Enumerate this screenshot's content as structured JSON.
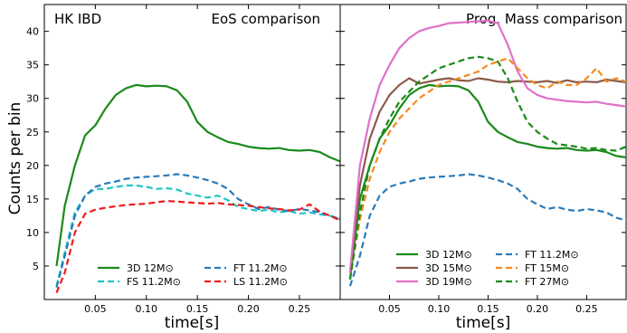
{
  "figure": {
    "ylabel": "Counts per bin",
    "xlabel": "time[s]"
  },
  "chart_data": [
    {
      "type": "line",
      "panel_label": "HK IBD",
      "title": "EoS comparison",
      "xlabel": "time[s]",
      "ylabel": "Counts per bin",
      "xlim": [
        0.0,
        0.29
      ],
      "ylim": [
        0,
        44
      ],
      "xticks": [
        "0.05",
        "0.10",
        "0.15",
        "0.20",
        "0.25"
      ],
      "yticks": [
        "5",
        "10",
        "15",
        "20",
        "25",
        "30",
        "35",
        "40"
      ],
      "legend_position": "bottom-center",
      "series": [
        {
          "name": "3D 12M⊙",
          "color": "#1a8a1a",
          "dash": "solid",
          "x": [
            0.012,
            0.02,
            0.03,
            0.04,
            0.05,
            0.06,
            0.07,
            0.08,
            0.09,
            0.1,
            0.11,
            0.12,
            0.13,
            0.14,
            0.15,
            0.16,
            0.17,
            0.18,
            0.19,
            0.2,
            0.21,
            0.22,
            0.23,
            0.24,
            0.25,
            0.26,
            0.27,
            0.28,
            0.29
          ],
          "y": [
            5,
            14,
            20,
            24.5,
            26,
            28.5,
            30.5,
            31.5,
            32,
            31.8,
            31.9,
            31.8,
            31.2,
            29.5,
            26.5,
            25,
            24.2,
            23.5,
            23.2,
            22.8,
            22.6,
            22.5,
            22.6,
            22.3,
            22.2,
            22.3,
            22,
            21.2,
            20.6
          ]
        },
        {
          "name": "FS 11.2M⊙",
          "color": "#1fc4c4",
          "dash": "dashed",
          "x": [
            0.012,
            0.02,
            0.03,
            0.04,
            0.05,
            0.06,
            0.07,
            0.08,
            0.09,
            0.1,
            0.11,
            0.12,
            0.13,
            0.14,
            0.15,
            0.16,
            0.17,
            0.18,
            0.19,
            0.2,
            0.21,
            0.22,
            0.23,
            0.24,
            0.25,
            0.26,
            0.27,
            0.28,
            0.29
          ],
          "y": [
            2,
            7,
            13,
            15.5,
            16.5,
            16.5,
            16.8,
            17,
            17,
            16.8,
            16.5,
            16.6,
            16.4,
            15.8,
            15.5,
            15.2,
            15.5,
            14.8,
            13.8,
            13.5,
            13.2,
            13.4,
            13,
            13.2,
            12.8,
            13,
            12.7,
            12.5,
            12
          ]
        },
        {
          "name": "FT 11.2M⊙",
          "color": "#2a7ab8",
          "dash": "dashed",
          "x": [
            0.012,
            0.02,
            0.03,
            0.04,
            0.05,
            0.06,
            0.07,
            0.08,
            0.09,
            0.1,
            0.11,
            0.12,
            0.13,
            0.14,
            0.15,
            0.16,
            0.17,
            0.18,
            0.19,
            0.2,
            0.21,
            0.22,
            0.23,
            0.24,
            0.25,
            0.26,
            0.27,
            0.28,
            0.29
          ],
          "y": [
            1.8,
            6.5,
            12.5,
            15.5,
            16.8,
            17.3,
            17.6,
            18,
            18.2,
            18.3,
            18.4,
            18.5,
            18.7,
            18.5,
            18.2,
            17.8,
            17.3,
            16.5,
            15,
            14.2,
            13.5,
            13.8,
            13.4,
            13.2,
            13.5,
            13.3,
            13,
            12.5,
            12
          ]
        },
        {
          "name": "LS 11.2M⊙",
          "color": "#ee1c1c",
          "dash": "dashed",
          "x": [
            0.012,
            0.02,
            0.03,
            0.04,
            0.05,
            0.06,
            0.07,
            0.08,
            0.09,
            0.1,
            0.11,
            0.12,
            0.13,
            0.14,
            0.15,
            0.16,
            0.17,
            0.18,
            0.19,
            0.2,
            0.21,
            0.22,
            0.23,
            0.24,
            0.25,
            0.26,
            0.27,
            0.28,
            0.29
          ],
          "y": [
            1,
            4,
            10,
            12.8,
            13.4,
            13.7,
            13.9,
            14.1,
            14.2,
            14.3,
            14.5,
            14.7,
            14.6,
            14.5,
            14.4,
            14.3,
            14.4,
            14.2,
            14.1,
            14,
            13.8,
            13.6,
            13.5,
            13.3,
            13.4,
            14.2,
            13.1,
            12.5,
            11.8
          ]
        }
      ]
    },
    {
      "type": "line",
      "title": "Prog. Mass comparison",
      "xlabel": "time[s]",
      "xlim": [
        0.0,
        0.29
      ],
      "ylim": [
        0,
        44
      ],
      "xticks": [
        "0.05",
        "0.10",
        "0.15",
        "0.20",
        "0.25"
      ],
      "legend_position": "bottom-center",
      "series": [
        {
          "name": "3D 12M⊙",
          "color": "#1a8a1a",
          "dash": "solid",
          "x": [
            0.01,
            0.02,
            0.03,
            0.04,
            0.05,
            0.06,
            0.07,
            0.08,
            0.09,
            0.1,
            0.11,
            0.12,
            0.13,
            0.14,
            0.15,
            0.16,
            0.17,
            0.18,
            0.19,
            0.2,
            0.21,
            0.22,
            0.23,
            0.24,
            0.25,
            0.26,
            0.27,
            0.28,
            0.29
          ],
          "y": [
            3,
            15,
            20,
            24,
            26,
            28.5,
            30.5,
            31.5,
            32,
            31.8,
            31.9,
            31.8,
            31.2,
            29.5,
            26.5,
            25,
            24.2,
            23.5,
            23.2,
            22.8,
            22.6,
            22.5,
            22.6,
            22.3,
            22.2,
            22.3,
            22,
            21.4,
            21.2
          ]
        },
        {
          "name": "3D 15M⊙",
          "color": "#8b5a4a",
          "dash": "solid",
          "x": [
            0.01,
            0.02,
            0.03,
            0.04,
            0.05,
            0.06,
            0.07,
            0.08,
            0.09,
            0.1,
            0.11,
            0.12,
            0.13,
            0.14,
            0.15,
            0.16,
            0.17,
            0.18,
            0.19,
            0.2,
            0.21,
            0.22,
            0.23,
            0.24,
            0.25,
            0.26,
            0.27,
            0.28,
            0.29
          ],
          "y": [
            4,
            17,
            24,
            28,
            30.5,
            32,
            33,
            32.2,
            32.5,
            32.8,
            33,
            32.7,
            32.6,
            33,
            32.8,
            32.5,
            32.4,
            32.6,
            32.5,
            32.4,
            32.6,
            32.3,
            32.7,
            32.4,
            32.5,
            32.4,
            32.8,
            32.6,
            32.4
          ]
        },
        {
          "name": "3D 19M⊙",
          "color": "#e070c8",
          "dash": "solid",
          "x": [
            0.01,
            0.02,
            0.03,
            0.04,
            0.05,
            0.06,
            0.07,
            0.08,
            0.09,
            0.1,
            0.11,
            0.12,
            0.13,
            0.14,
            0.15,
            0.16,
            0.17,
            0.18,
            0.19,
            0.2,
            0.21,
            0.22,
            0.23,
            0.24,
            0.25,
            0.26,
            0.27,
            0.28,
            0.29
          ],
          "y": [
            4,
            20,
            27,
            32,
            35,
            37.5,
            39,
            40,
            40.5,
            40.8,
            41.2,
            41.3,
            41.4,
            41.5,
            41.6,
            41.2,
            38,
            34,
            31.5,
            30.5,
            30,
            29.8,
            29.6,
            29.5,
            29.4,
            29.5,
            29.2,
            29,
            28.8
          ]
        },
        {
          "name": "FT 11.2M⊙",
          "color": "#2a7ab8",
          "dash": "dashed",
          "x": [
            0.01,
            0.02,
            0.03,
            0.04,
            0.05,
            0.06,
            0.07,
            0.08,
            0.09,
            0.1,
            0.11,
            0.12,
            0.13,
            0.14,
            0.15,
            0.16,
            0.17,
            0.18,
            0.19,
            0.2,
            0.21,
            0.22,
            0.23,
            0.24,
            0.25,
            0.26,
            0.27,
            0.28,
            0.29
          ],
          "y": [
            2,
            6.5,
            12.5,
            15.5,
            16.8,
            17.3,
            17.6,
            18,
            18.2,
            18.3,
            18.4,
            18.5,
            18.7,
            18.5,
            18.2,
            17.8,
            17.3,
            16.5,
            15,
            14.2,
            13.5,
            13.8,
            13.4,
            13.2,
            13.5,
            13.3,
            13,
            12.2,
            11.8
          ]
        },
        {
          "name": "FT 15M⊙",
          "color": "#f58a20",
          "dash": "dashed",
          "x": [
            0.01,
            0.02,
            0.03,
            0.04,
            0.05,
            0.06,
            0.07,
            0.08,
            0.09,
            0.1,
            0.11,
            0.12,
            0.13,
            0.14,
            0.15,
            0.16,
            0.17,
            0.18,
            0.19,
            0.2,
            0.21,
            0.22,
            0.23,
            0.24,
            0.25,
            0.26,
            0.27,
            0.28,
            0.29
          ],
          "y": [
            3,
            12,
            18,
            22,
            25,
            27,
            28.5,
            30,
            31,
            32,
            32.5,
            33,
            33.5,
            34,
            35,
            35.5,
            36,
            34.5,
            33,
            32,
            31.5,
            32.5,
            32,
            32,
            33,
            34.5,
            32.5,
            33,
            32.5
          ]
        },
        {
          "name": "FT 27M⊙",
          "color": "#1a8a1a",
          "dash": "dashed",
          "x": [
            0.01,
            0.02,
            0.03,
            0.04,
            0.05,
            0.06,
            0.07,
            0.08,
            0.09,
            0.1,
            0.11,
            0.12,
            0.13,
            0.14,
            0.15,
            0.16,
            0.17,
            0.18,
            0.19,
            0.2,
            0.21,
            0.22,
            0.23,
            0.24,
            0.25,
            0.26,
            0.27,
            0.28,
            0.29
          ],
          "y": [
            3,
            13,
            20,
            24,
            27,
            29.5,
            31,
            32.5,
            33.5,
            34.5,
            35,
            35.5,
            36,
            36.2,
            36,
            35.5,
            33,
            29.5,
            26.5,
            25,
            24,
            23.2,
            23,
            22.8,
            22.5,
            22.6,
            22.3,
            22.2,
            22.8
          ]
        }
      ]
    }
  ]
}
